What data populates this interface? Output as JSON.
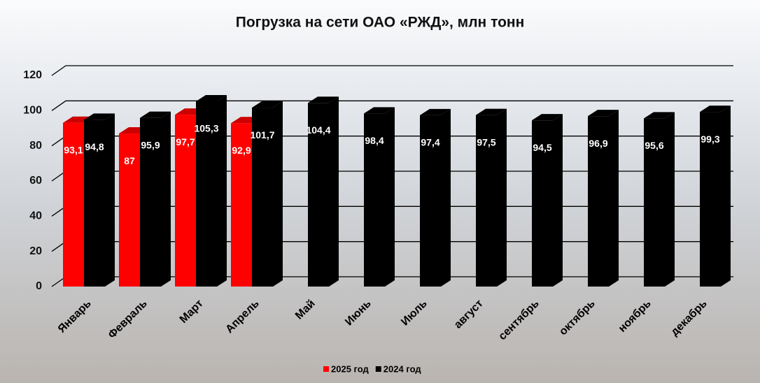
{
  "chart_data": {
    "type": "bar3d",
    "title": "Погрузка на сети ОАО «РЖД», млн тонн",
    "categories": [
      "Январь",
      "Февраль",
      "Март",
      "Апрель",
      "Май",
      "Июнь",
      "Июль",
      "август",
      "сентябрь",
      "октябрь",
      "ноябрь",
      "декабрь"
    ],
    "series": [
      {
        "name": "2025 год",
        "color": "#ff0000",
        "values": [
          93.1,
          87,
          97.7,
          92.9,
          null,
          null,
          null,
          null,
          null,
          null,
          null,
          null
        ],
        "value_labels": [
          "93,1",
          "87",
          "97,7",
          "92,9",
          null,
          null,
          null,
          null,
          null,
          null,
          null,
          null
        ]
      },
      {
        "name": "2024 год",
        "color": "#000000",
        "values": [
          94.8,
          95.9,
          105.3,
          101.7,
          104.4,
          98.4,
          97.4,
          97.5,
          94.5,
          96.9,
          95.6,
          99.3
        ],
        "value_labels": [
          "94,8",
          "95,9",
          "105,3",
          "101,7",
          "104,4",
          "98,4",
          "97,4",
          "97,5",
          "94,5",
          "96,9",
          "95,6",
          "99,3"
        ]
      }
    ],
    "ylim": [
      0,
      120
    ],
    "yticks": [
      0,
      20,
      40,
      60,
      80,
      100,
      120
    ],
    "grid": true,
    "legend": "bottom"
  }
}
